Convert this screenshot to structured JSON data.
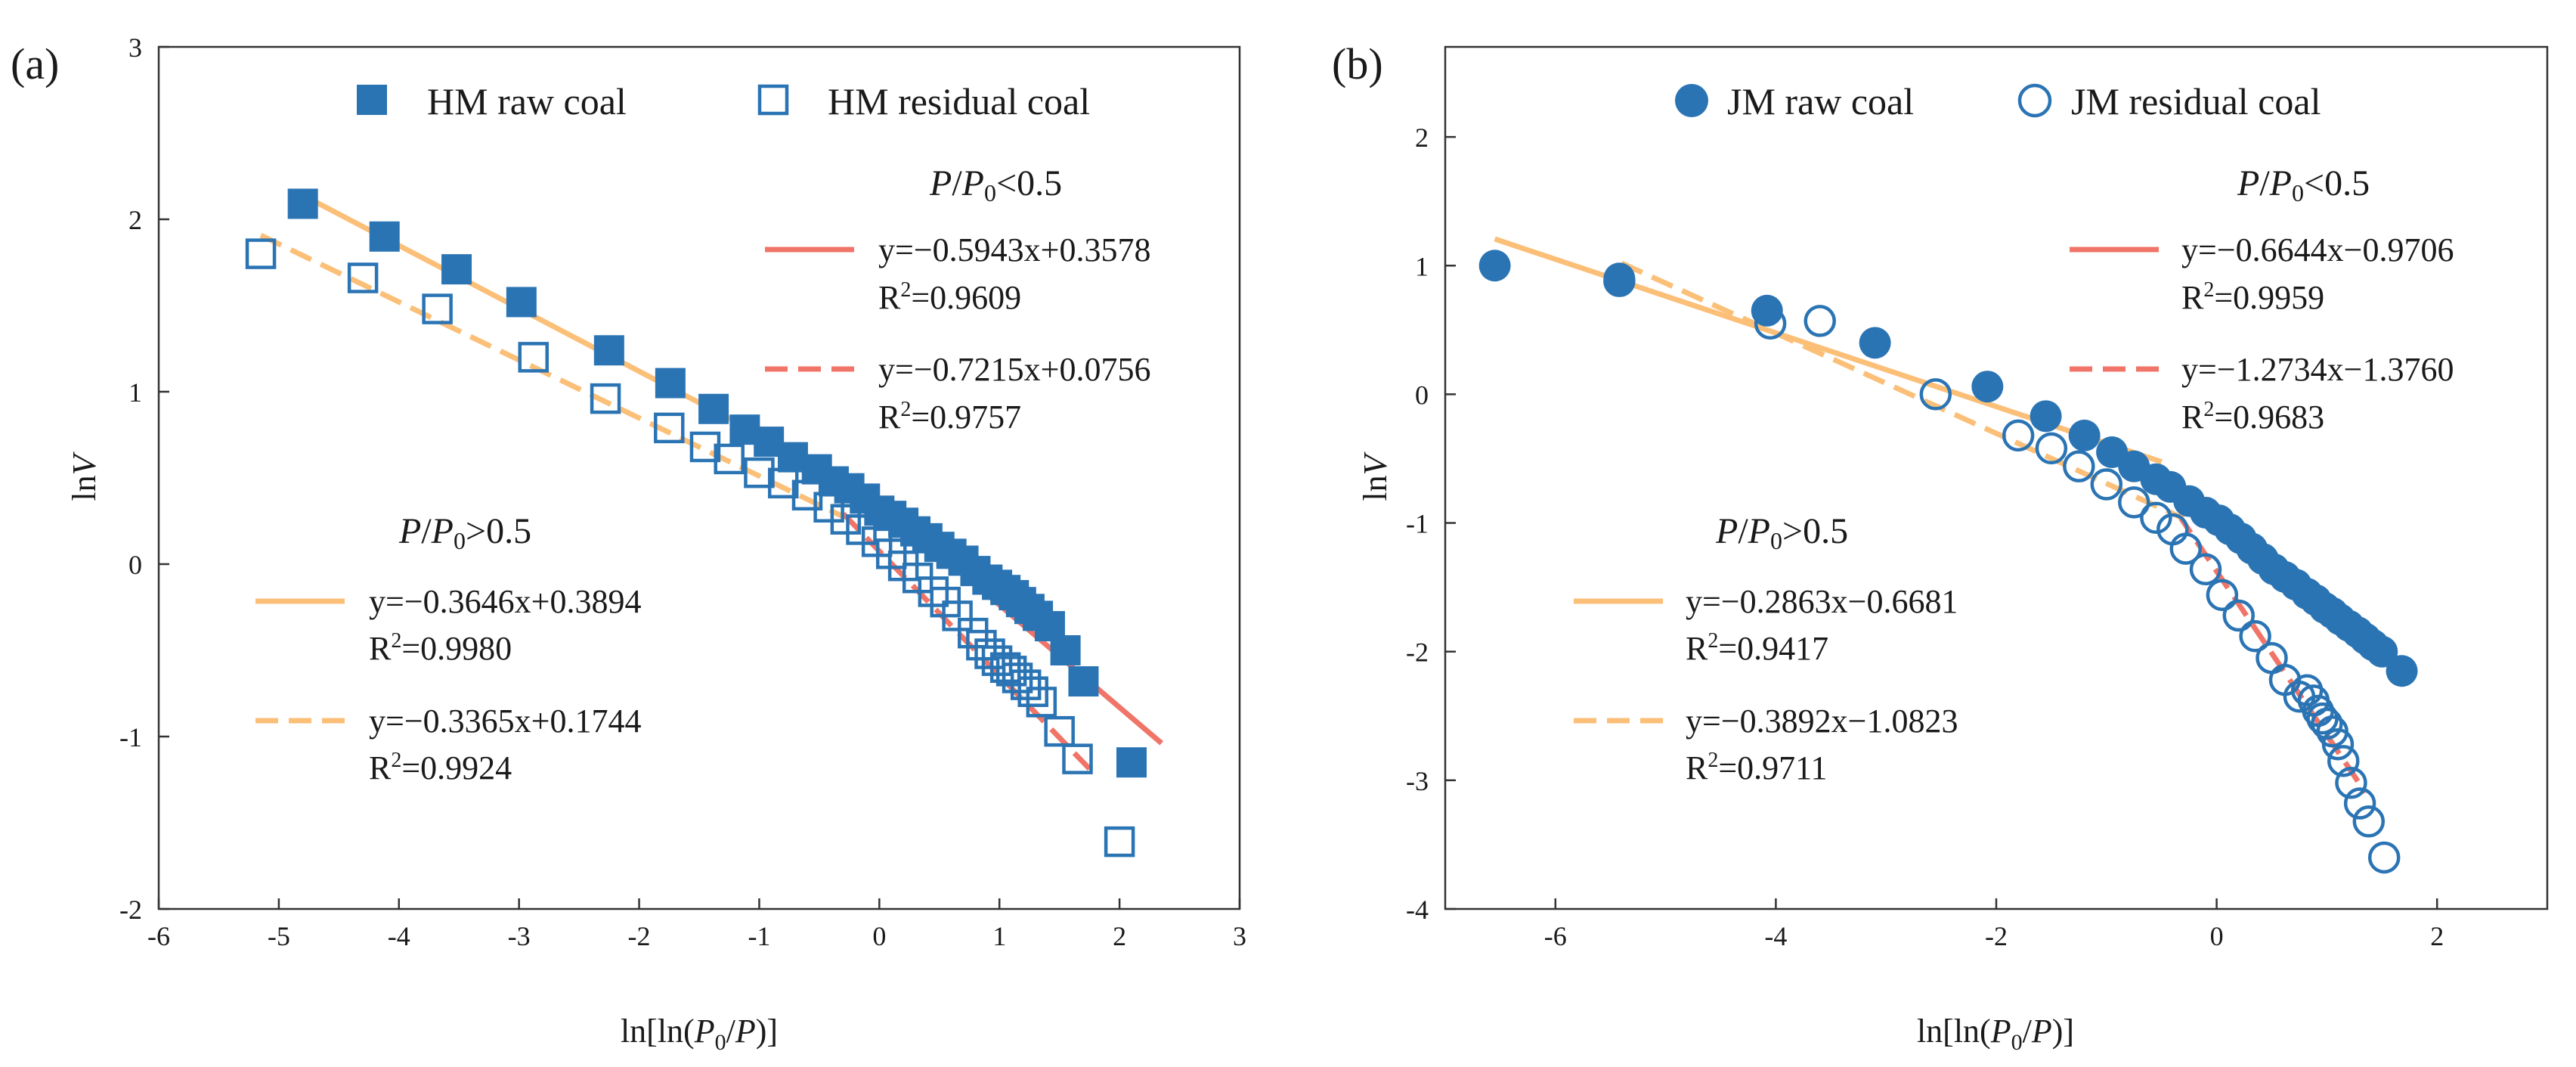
{
  "colors": {
    "marker": "#2b74b4",
    "fit_low": "#f07468",
    "fit_high": "#fbbf78",
    "axis": "#333333"
  },
  "chart_data": [
    {
      "type": "scatter",
      "panel": "(a)",
      "xlabel": "ln[ln(P0/P)]",
      "xlabel_parts": {
        "pre": "ln[ln(",
        "p0": "P",
        "p0_sub": "0",
        "mid": "/",
        "p": "P",
        "post": ")]"
      },
      "ylabel": "lnV",
      "ylabel_parts": {
        "pre": "ln",
        "v": "V"
      },
      "xlim": [
        -6,
        3
      ],
      "ylim": [
        -2,
        3
      ],
      "xticks": [
        -6,
        -5,
        -4,
        -3,
        -2,
        -1,
        0,
        1,
        2,
        3
      ],
      "yticks": [
        -2,
        -1,
        0,
        1,
        2,
        3
      ],
      "legend": [
        {
          "label": "HM raw coal",
          "marker": "square-filled"
        },
        {
          "label": "HM residual coal",
          "marker": "square-open"
        }
      ],
      "series": [
        {
          "name": "HM raw coal",
          "marker": "square-filled",
          "x": [
            -4.8,
            -4.12,
            -3.52,
            -2.98,
            -2.25,
            -1.74,
            -1.38,
            -1.12,
            -0.92,
            -0.72,
            -0.52,
            -0.38,
            -0.25,
            -0.12,
            0.0,
            0.1,
            0.2,
            0.3,
            0.4,
            0.5,
            0.6,
            0.7,
            0.8,
            0.9,
            0.98,
            1.05,
            1.12,
            1.18,
            1.25,
            1.32,
            1.42,
            1.55,
            1.7,
            2.1
          ],
          "y": [
            2.09,
            1.9,
            1.71,
            1.52,
            1.24,
            1.05,
            0.9,
            0.78,
            0.71,
            0.62,
            0.55,
            0.48,
            0.44,
            0.38,
            0.31,
            0.28,
            0.24,
            0.19,
            0.15,
            0.1,
            0.06,
            0.02,
            -0.04,
            -0.09,
            -0.12,
            -0.15,
            -0.18,
            -0.22,
            -0.26,
            -0.3,
            -0.36,
            -0.5,
            -0.68,
            -1.15
          ]
        },
        {
          "name": "HM residual coal",
          "marker": "square-open",
          "x": [
            -5.15,
            -4.3,
            -3.68,
            -2.88,
            -2.28,
            -1.75,
            -1.45,
            -1.25,
            -1.0,
            -0.8,
            -0.6,
            -0.42,
            -0.28,
            -0.15,
            -0.02,
            0.1,
            0.2,
            0.32,
            0.45,
            0.55,
            0.65,
            0.78,
            0.85,
            0.92,
            0.98,
            1.05,
            1.1,
            1.15,
            1.22,
            1.28,
            1.35,
            1.5,
            1.65,
            2.0
          ],
          "y": [
            1.8,
            1.66,
            1.48,
            1.2,
            0.96,
            0.79,
            0.68,
            0.61,
            0.53,
            0.47,
            0.4,
            0.33,
            0.26,
            0.2,
            0.13,
            0.06,
            -0.01,
            -0.08,
            -0.16,
            -0.22,
            -0.3,
            -0.4,
            -0.47,
            -0.52,
            -0.56,
            -0.6,
            -0.62,
            -0.66,
            -0.7,
            -0.74,
            -0.8,
            -0.97,
            -1.13,
            -1.61
          ]
        }
      ],
      "fit_lines": [
        {
          "condition": "low",
          "dash": false,
          "x": [
            -0.3,
            2.35
          ],
          "slope": -0.5943,
          "intercept": 0.3578
        },
        {
          "condition": "low",
          "dash": true,
          "x": [
            -0.3,
            1.75
          ],
          "slope": -0.7215,
          "intercept": 0.0756
        },
        {
          "condition": "high",
          "dash": false,
          "x": [
            -4.8,
            -0.3
          ],
          "slope": -0.3646,
          "intercept": 0.3894
        },
        {
          "condition": "high",
          "dash": true,
          "x": [
            -5.15,
            -0.3
          ],
          "slope": -0.3365,
          "intercept": 0.1744
        }
      ],
      "annotations": {
        "low_title": {
          "p": "P",
          "sep": "/",
          "p0": "P",
          "p0_sub": "0",
          "rel": "<0.5"
        },
        "high_title": {
          "p": "P",
          "sep": "/",
          "p0": "P",
          "p0_sub": "0",
          "rel": ">0.5"
        },
        "low_solid_eq": "y=−0.5943x+0.3578",
        "low_solid_r2_pre": "R",
        "low_solid_r2_post": "=0.9609",
        "low_dash_eq": "y=−0.7215x+0.0756",
        "low_dash_r2_pre": "R",
        "low_dash_r2_post": "=0.9757",
        "high_solid_eq": "y=−0.3646x+0.3894",
        "high_solid_r2_pre": "R",
        "high_solid_r2_post": "=0.9980",
        "high_dash_eq": "y=−0.3365x+0.1744",
        "high_dash_r2_pre": "R",
        "high_dash_r2_post": "=0.9924",
        "r2_sup": "2"
      }
    },
    {
      "type": "scatter",
      "panel": "(b)",
      "xlabel": "ln[ln(P0/P)]",
      "xlabel_parts": {
        "pre": "ln[ln(",
        "p0": "P",
        "p0_sub": "0",
        "mid": "/",
        "p": "P",
        "post": ")]"
      },
      "ylabel": "lnV",
      "ylabel_parts": {
        "pre": "ln",
        "v": "V"
      },
      "xlim": [
        -7,
        3
      ],
      "ylim": [
        -4,
        2.7
      ],
      "xticks": [
        -6,
        -4,
        -2,
        0,
        2
      ],
      "yticks": [
        -4,
        -3,
        -2,
        -1,
        0,
        1,
        2
      ],
      "legend": [
        {
          "label": "JM raw coal",
          "marker": "circle-filled"
        },
        {
          "label": "JM residual coal",
          "marker": "circle-open"
        }
      ],
      "series": [
        {
          "name": "JM raw coal",
          "marker": "circle-filled",
          "x": [
            -6.55,
            -5.42,
            -4.08,
            -3.1,
            -2.08,
            -1.55,
            -1.2,
            -0.95,
            -0.75,
            -0.55,
            -0.42,
            -0.25,
            -0.1,
            0.02,
            0.12,
            0.22,
            0.32,
            0.42,
            0.52,
            0.62,
            0.72,
            0.82,
            0.9,
            0.98,
            1.05,
            1.12,
            1.2,
            1.28,
            1.35,
            1.42,
            1.5,
            1.68
          ],
          "y": [
            1.0,
            0.9,
            0.65,
            0.4,
            0.06,
            -0.17,
            -0.32,
            -0.45,
            -0.56,
            -0.66,
            -0.72,
            -0.83,
            -0.92,
            -0.98,
            -1.05,
            -1.12,
            -1.2,
            -1.28,
            -1.36,
            -1.42,
            -1.48,
            -1.55,
            -1.6,
            -1.66,
            -1.7,
            -1.75,
            -1.8,
            -1.85,
            -1.9,
            -1.95,
            -2.0,
            -2.15
          ]
        },
        {
          "name": "JM residual coal",
          "marker": "circle-open",
          "x": [
            -5.42,
            -4.05,
            -3.6,
            -2.55,
            -1.8,
            -1.5,
            -1.25,
            -1.0,
            -0.75,
            -0.55,
            -0.4,
            -0.28,
            -0.1,
            0.05,
            0.2,
            0.35,
            0.5,
            0.62,
            0.75,
            0.82,
            0.88,
            0.92,
            0.96,
            1.0,
            1.05,
            1.1,
            1.15,
            1.22,
            1.3,
            1.38,
            1.52
          ],
          "y": [
            0.88,
            0.55,
            0.57,
            0.0,
            -0.32,
            -0.42,
            -0.56,
            -0.7,
            -0.84,
            -0.96,
            -1.05,
            -1.2,
            -1.36,
            -1.56,
            -1.72,
            -1.88,
            -2.05,
            -2.22,
            -2.35,
            -2.3,
            -2.38,
            -2.46,
            -2.52,
            -2.56,
            -2.62,
            -2.72,
            -2.85,
            -3.02,
            -3.18,
            -3.32,
            -3.6
          ]
        }
      ],
      "fit_lines": [
        {
          "condition": "low",
          "dash": false,
          "x": [
            -0.35,
            1.65
          ],
          "slope": -0.6644,
          "intercept": -0.9706
        },
        {
          "condition": "low",
          "dash": true,
          "x": [
            -0.35,
            1.35
          ],
          "slope": -1.2734,
          "intercept": -1.376
        },
        {
          "condition": "high",
          "dash": false,
          "x": [
            -6.55,
            -0.5
          ],
          "slope": -0.2863,
          "intercept": -0.6681
        },
        {
          "condition": "high",
          "dash": true,
          "x": [
            -5.4,
            -0.3
          ],
          "slope": -0.3892,
          "intercept": -1.0823
        }
      ],
      "annotations": {
        "low_title": {
          "p": "P",
          "sep": "/",
          "p0": "P",
          "p0_sub": "0",
          "rel": "<0.5"
        },
        "high_title": {
          "p": "P",
          "sep": "/",
          "p0": "P",
          "p0_sub": "0",
          "rel": ">0.5"
        },
        "low_solid_eq": "y=−0.6644x−0.9706",
        "low_solid_r2_pre": "R",
        "low_solid_r2_post": "=0.9959",
        "low_dash_eq": "y=−1.2734x−1.3760",
        "low_dash_r2_pre": "R",
        "low_dash_r2_post": "=0.9683",
        "high_solid_eq": "y=−0.2863x−0.6681",
        "high_solid_r2_pre": "R",
        "high_solid_r2_post": "=0.9417",
        "high_dash_eq": "y=−0.3892x−1.0823",
        "high_dash_r2_pre": "R",
        "high_dash_r2_post": "=0.9711",
        "r2_sup": "2"
      }
    }
  ]
}
